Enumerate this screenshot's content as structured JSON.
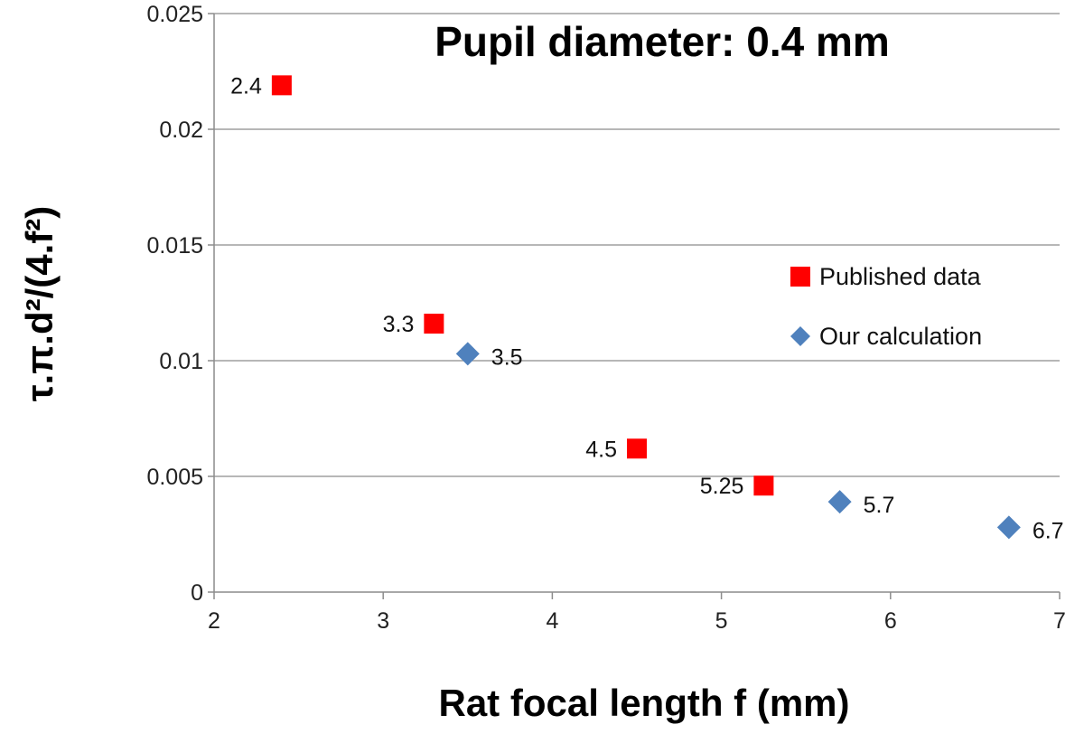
{
  "chart_data": {
    "type": "scatter",
    "title": "Pupil diameter: 0.4 mm",
    "xlabel": "Rat focal length f (mm)",
    "ylabel": "τ.π.d²/(4.f²)",
    "xlim": [
      2,
      7
    ],
    "ylim": [
      0,
      0.025
    ],
    "x_ticks": [
      "2",
      "3",
      "4",
      "5",
      "6",
      "7"
    ],
    "y_ticks": [
      "0",
      "0.005",
      "0.01",
      "0.015",
      "0.02",
      "0.025"
    ],
    "grid": "horizontal",
    "legend_placement": "right",
    "series": [
      {
        "name": "Published data",
        "marker": "square",
        "color": "#ff0000",
        "points": [
          {
            "x": 2.4,
            "y": 0.0219,
            "label": "2.4"
          },
          {
            "x": 3.3,
            "y": 0.0116,
            "label": "3.3"
          },
          {
            "x": 4.5,
            "y": 0.0062,
            "label": "4.5"
          },
          {
            "x": 5.25,
            "y": 0.0046,
            "label": "5.25"
          }
        ]
      },
      {
        "name": "Our calculation",
        "marker": "diamond",
        "color": "#4f81bd",
        "points": [
          {
            "x": 3.5,
            "y": 0.0103,
            "label": "3.5"
          },
          {
            "x": 5.7,
            "y": 0.0039,
            "label": "5.7"
          },
          {
            "x": 6.7,
            "y": 0.0028,
            "label": "6.7"
          }
        ]
      }
    ]
  }
}
